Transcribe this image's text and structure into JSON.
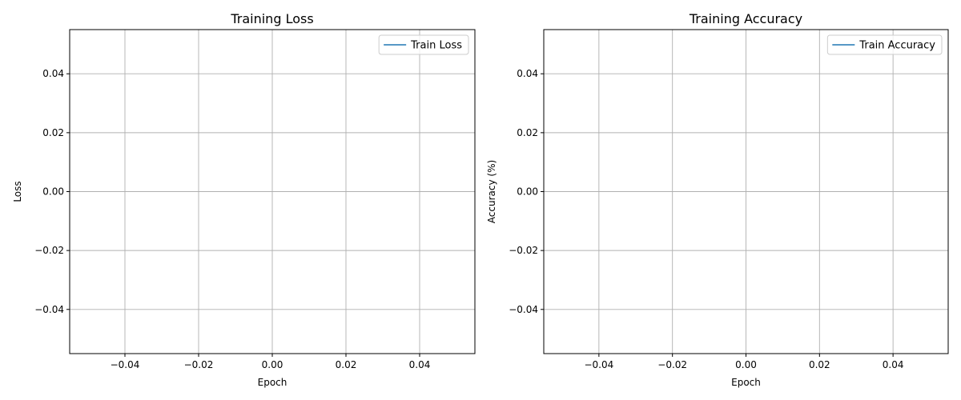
{
  "colors": {
    "series": "#1f77b4",
    "grid": "#b0b0b0"
  },
  "chart_data": [
    {
      "type": "line",
      "title": "Training Loss",
      "xlabel": "Epoch",
      "ylabel": "Loss",
      "xlim": [
        -0.055,
        0.055
      ],
      "ylim": [
        -0.055,
        0.055
      ],
      "xticks": [
        -0.04,
        -0.02,
        0.0,
        0.02,
        0.04
      ],
      "xtick_labels": [
        "−0.04",
        "−0.02",
        "0.00",
        "0.02",
        "0.04"
      ],
      "yticks": [
        -0.04,
        -0.02,
        0.0,
        0.02,
        0.04
      ],
      "ytick_labels": [
        "−0.04",
        "−0.02",
        "0.00",
        "0.02",
        "0.04"
      ],
      "grid": true,
      "legend_position": "top-right",
      "series": [
        {
          "name": "Train Loss",
          "x": [],
          "y": []
        }
      ]
    },
    {
      "type": "line",
      "title": "Training Accuracy",
      "xlabel": "Epoch",
      "ylabel": "Accuracy (%)",
      "xlim": [
        -0.055,
        0.055
      ],
      "ylim": [
        -0.055,
        0.055
      ],
      "xticks": [
        -0.04,
        -0.02,
        0.0,
        0.02,
        0.04
      ],
      "xtick_labels": [
        "−0.04",
        "−0.02",
        "0.00",
        "0.02",
        "0.04"
      ],
      "yticks": [
        -0.04,
        -0.02,
        0.0,
        0.02,
        0.04
      ],
      "ytick_labels": [
        "−0.04",
        "−0.02",
        "0.00",
        "0.02",
        "0.04"
      ],
      "grid": true,
      "legend_position": "top-right",
      "series": [
        {
          "name": "Train Accuracy",
          "x": [],
          "y": []
        }
      ]
    }
  ]
}
